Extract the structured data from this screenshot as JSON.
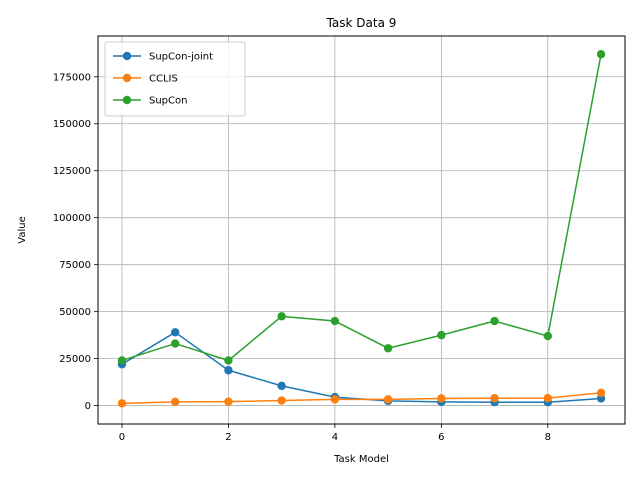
{
  "chart_data": {
    "type": "line",
    "title": "Task Data 9",
    "xlabel": "Task Model",
    "ylabel": "Value",
    "x": [
      0,
      1,
      2,
      3,
      4,
      5,
      6,
      7,
      8,
      9
    ],
    "xlim": [
      -0.45,
      9.45
    ],
    "ylim": [
      -9800,
      196700
    ],
    "xticks": [
      0,
      2,
      4,
      6,
      8
    ],
    "yticks": [
      0,
      25000,
      50000,
      75000,
      100000,
      125000,
      150000,
      175000
    ],
    "grid": true,
    "legend_position": "top-left",
    "series": [
      {
        "name": "SupCon-joint",
        "color": "#1f77b4",
        "values": [
          22000,
          39000,
          18800,
          10500,
          4500,
          2500,
          2000,
          1800,
          1800,
          3800
        ]
      },
      {
        "name": "CCLIS",
        "color": "#ff7f0e",
        "values": [
          1200,
          2000,
          2100,
          2700,
          3300,
          3300,
          3800,
          3900,
          4000,
          6800
        ]
      },
      {
        "name": "SupCon",
        "color": "#2ca02c",
        "values": [
          24000,
          33000,
          24000,
          47500,
          45000,
          30500,
          37500,
          45000,
          37000,
          187000
        ]
      }
    ]
  }
}
